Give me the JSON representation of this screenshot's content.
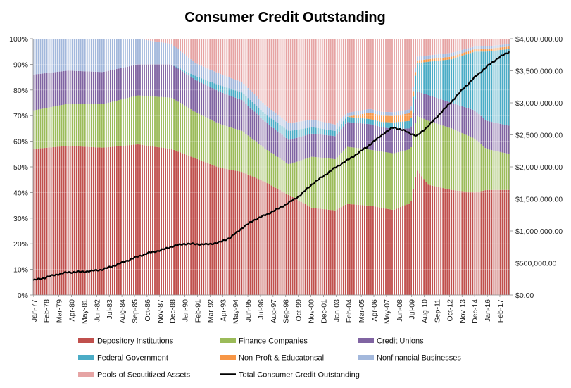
{
  "chart_data": {
    "type": "bar",
    "subtype": "stacked-percent-bar-with-line",
    "title": "Consumer Credit Outstanding",
    "x_tick_labels": [
      "Jan-77",
      "Feb-78",
      "Mar-79",
      "Apr-80",
      "May-81",
      "Jun-82",
      "Jul-83",
      "Aug-84",
      "Sep-85",
      "Oct-86",
      "Nov-87",
      "Dec-88",
      "Jan-90",
      "Feb-91",
      "Mar-92",
      "Apr-93",
      "May-94",
      "Jun-95",
      "Jul-96",
      "Aug-97",
      "Sep-98",
      "Oct-99",
      "Nov-00",
      "Dec-01",
      "Jan-03",
      "Feb-04",
      "Mar-05",
      "Apr-06",
      "May-07",
      "Jun-08",
      "Jul-09",
      "Aug-10",
      "Sep-11",
      "Oct-12",
      "Nov-13",
      "Dec-14",
      "Jan-16",
      "Feb-17"
    ],
    "y_left_ticks": [
      "0%",
      "10%",
      "20%",
      "30%",
      "40%",
      "50%",
      "60%",
      "70%",
      "80%",
      "90%",
      "100%"
    ],
    "y_right_ticks": [
      "$0.00",
      "$500,000.00",
      "$1,000,000.00",
      "$1,500,000.00",
      "$2,000,000.00",
      "$2,500,000.00",
      "$3,000,000.00",
      "$3,500,000.00",
      "$4,000,000.00"
    ],
    "ylim_left": [
      0,
      100
    ],
    "ylim_right": [
      0,
      4000000
    ],
    "x_start_year": 1977.0,
    "x_end_year": 2018.0,
    "series": [
      {
        "name": "Depository Institutions",
        "color": "#c0504d",
        "points": [
          [
            1977,
            57
          ],
          [
            1980,
            58.5
          ],
          [
            1983,
            57.5
          ],
          [
            1986,
            58.5
          ],
          [
            1988.9,
            57
          ],
          [
            1991,
            53
          ],
          [
            1993,
            49.5
          ],
          [
            1995,
            48
          ],
          [
            1997,
            44
          ],
          [
            1999,
            39
          ],
          [
            2001,
            34
          ],
          [
            2003,
            33
          ],
          [
            2004,
            35
          ],
          [
            2006,
            35
          ],
          [
            2007,
            34
          ],
          [
            2008,
            33
          ],
          [
            2009.5,
            36
          ],
          [
            2010.0,
            49
          ],
          [
            2011,
            43
          ],
          [
            2013,
            41
          ],
          [
            2015,
            40
          ],
          [
            2016,
            41
          ],
          [
            2018,
            41
          ]
        ]
      },
      {
        "name": "Finance Companies",
        "color": "#9bbb59",
        "points": [
          [
            1977,
            15
          ],
          [
            1980,
            16.5
          ],
          [
            1983,
            17
          ],
          [
            1986,
            19
          ],
          [
            1988.9,
            20
          ],
          [
            1991,
            18
          ],
          [
            1993,
            17
          ],
          [
            1995,
            16
          ],
          [
            1997,
            13
          ],
          [
            1999,
            12
          ],
          [
            2001,
            20
          ],
          [
            2003,
            20
          ],
          [
            2004,
            22
          ],
          [
            2006,
            22
          ],
          [
            2007,
            22
          ],
          [
            2008,
            22
          ],
          [
            2009.5,
            21
          ],
          [
            2010.0,
            21
          ],
          [
            2011,
            25
          ],
          [
            2013,
            24
          ],
          [
            2015,
            21
          ],
          [
            2016,
            16
          ],
          [
            2018,
            14
          ]
        ]
      },
      {
        "name": "Credit Unions",
        "color": "#8064a2",
        "points": [
          [
            1977,
            14
          ],
          [
            1980,
            13
          ],
          [
            1983,
            12.5
          ],
          [
            1986,
            12
          ],
          [
            1988.9,
            13
          ],
          [
            1991,
            12.5
          ],
          [
            1993,
            12.5
          ],
          [
            1995,
            12
          ],
          [
            1997,
            10.5
          ],
          [
            1999,
            9.5
          ],
          [
            2001,
            9
          ],
          [
            2003,
            9
          ],
          [
            2004,
            9.5
          ],
          [
            2006,
            10
          ],
          [
            2007,
            9.5
          ],
          [
            2008,
            9.5
          ],
          [
            2009.5,
            8
          ],
          [
            2010.0,
            9.5
          ],
          [
            2011,
            10
          ],
          [
            2013,
            10
          ],
          [
            2015,
            11
          ],
          [
            2016,
            11
          ],
          [
            2018,
            11
          ]
        ]
      },
      {
        "name": "Federal Government",
        "color": "#4bacc6",
        "points": [
          [
            1977,
            0
          ],
          [
            1980,
            0
          ],
          [
            1983,
            0
          ],
          [
            1986,
            0
          ],
          [
            1988.9,
            0
          ],
          [
            1991,
            1.5
          ],
          [
            1993,
            2.5
          ],
          [
            1995,
            3
          ],
          [
            1997,
            3
          ],
          [
            1999,
            3.5
          ],
          [
            2001,
            2.5
          ],
          [
            2003,
            2
          ],
          [
            2004,
            2
          ],
          [
            2006,
            2
          ],
          [
            2007,
            2
          ],
          [
            2008,
            2.5
          ],
          [
            2009.5,
            3
          ],
          [
            2010.0,
            11
          ],
          [
            2011,
            13
          ],
          [
            2013,
            17
          ],
          [
            2015,
            23
          ],
          [
            2016,
            27
          ],
          [
            2018,
            30
          ]
        ]
      },
      {
        "name": "Non-Proft & Educatonsal",
        "color": "#f79646",
        "points": [
          [
            1977,
            0
          ],
          [
            1980,
            0
          ],
          [
            1983,
            0
          ],
          [
            1986,
            0
          ],
          [
            1988.9,
            0
          ],
          [
            1991,
            0
          ],
          [
            1993,
            0
          ],
          [
            1995,
            0
          ],
          [
            1997,
            0
          ],
          [
            1999,
            0
          ],
          [
            2001,
            0
          ],
          [
            2003,
            0
          ],
          [
            2004,
            0
          ],
          [
            2006,
            2.5
          ],
          [
            2007,
            2.5
          ],
          [
            2008,
            2.5
          ],
          [
            2009.5,
            3
          ],
          [
            2010.0,
            1
          ],
          [
            2011,
            1
          ],
          [
            2013,
            1
          ],
          [
            2015,
            1
          ],
          [
            2016,
            1
          ],
          [
            2018,
            1
          ]
        ]
      },
      {
        "name": "Nonfinancial Businesses",
        "color": "#a3b8dc",
        "points": [
          [
            1977,
            14
          ],
          [
            1980,
            12.5
          ],
          [
            1983,
            13
          ],
          [
            1986,
            10
          ],
          [
            1988.9,
            8
          ],
          [
            1991,
            5
          ],
          [
            1993,
            4.5
          ],
          [
            1995,
            4
          ],
          [
            1997,
            3.5
          ],
          [
            1999,
            3
          ],
          [
            2001,
            3
          ],
          [
            2003,
            2.5
          ],
          [
            2004,
            1.5
          ],
          [
            2006,
            1.5
          ],
          [
            2007,
            1.5
          ],
          [
            2008,
            1.5
          ],
          [
            2009.5,
            1.5
          ],
          [
            2010.0,
            1.5
          ],
          [
            2011,
            1.5
          ],
          [
            2013,
            1.5
          ],
          [
            2015,
            1
          ],
          [
            2016,
            1
          ],
          [
            2018,
            1
          ]
        ]
      },
      {
        "name": "Pools of Secutitized Assets",
        "color": "#e6a4a4",
        "points": [
          [
            1977,
            0
          ],
          [
            1980,
            0
          ],
          [
            1983,
            0
          ],
          [
            1986,
            0
          ],
          [
            1988.9,
            2
          ],
          [
            1991,
            9.5
          ],
          [
            1993,
            13.5
          ],
          [
            1995,
            17
          ],
          [
            1997,
            26
          ],
          [
            1999,
            33
          ],
          [
            2001,
            31.5
          ],
          [
            2003,
            33.5
          ],
          [
            2004,
            28.5
          ],
          [
            2006,
            27.5
          ],
          [
            2007,
            28.5
          ],
          [
            2008,
            28.5
          ],
          [
            2009.5,
            27.5
          ],
          [
            2010.0,
            7
          ],
          [
            2011,
            6.5
          ],
          [
            2013,
            5.5
          ],
          [
            2015,
            3
          ],
          [
            2016,
            3
          ],
          [
            2018,
            2
          ]
        ]
      }
    ],
    "line_series": {
      "name": "Total Consumer Credit Outstanding",
      "color": "#000000",
      "points": [
        [
          1977,
          230000
        ],
        [
          1978,
          270000
        ],
        [
          1979,
          320000
        ],
        [
          1980,
          355000
        ],
        [
          1981,
          360000
        ],
        [
          1982,
          375000
        ],
        [
          1983,
          400000
        ],
        [
          1984,
          460000
        ],
        [
          1985,
          530000
        ],
        [
          1986,
          600000
        ],
        [
          1987,
          660000
        ],
        [
          1988,
          700000
        ],
        [
          1989,
          760000
        ],
        [
          1990,
          800000
        ],
        [
          1991,
          795000
        ],
        [
          1992,
          790000
        ],
        [
          1993,
          820000
        ],
        [
          1994,
          900000
        ],
        [
          1995,
          1050000
        ],
        [
          1996,
          1170000
        ],
        [
          1997,
          1250000
        ],
        [
          1998,
          1340000
        ],
        [
          1999,
          1440000
        ],
        [
          2000,
          1560000
        ],
        [
          2001,
          1730000
        ],
        [
          2002,
          1860000
        ],
        [
          2003,
          1990000
        ],
        [
          2004,
          2100000
        ],
        [
          2005,
          2220000
        ],
        [
          2006,
          2350000
        ],
        [
          2007,
          2500000
        ],
        [
          2008,
          2620000
        ],
        [
          2009,
          2560000
        ],
        [
          2010.0,
          2480000
        ],
        [
          2011,
          2640000
        ],
        [
          2012,
          2830000
        ],
        [
          2013,
          3020000
        ],
        [
          2014,
          3220000
        ],
        [
          2015,
          3400000
        ],
        [
          2016,
          3560000
        ],
        [
          2017,
          3700000
        ],
        [
          2018,
          3800000
        ]
      ]
    },
    "legend_position": "bottom",
    "grid": true
  }
}
